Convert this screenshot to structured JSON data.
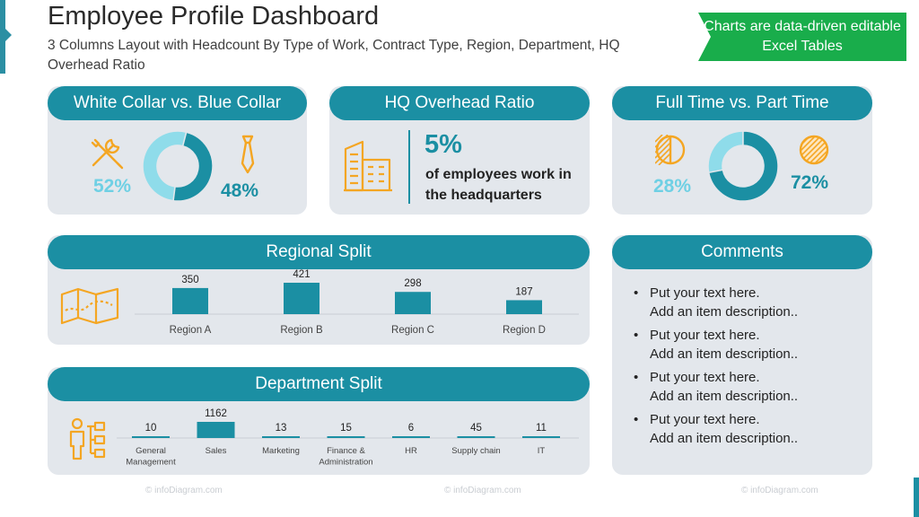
{
  "header": {
    "title": "Employee Profile Dashboard",
    "subtitle": "3 Columns Layout with Headcount By Type of Work, Contract Type, Region, Department, HQ Overhead Ratio",
    "badge": "Charts are data-driven editable Excel Tables"
  },
  "colors": {
    "accent": "#1b8fa3",
    "light_accent": "#8fdcea",
    "icon_orange": "#f4a623",
    "panel": "#e3e7ec",
    "badge_green": "#19ad4b"
  },
  "collar": {
    "heading": "White Collar vs. Blue Collar",
    "white_label": "52%",
    "blue_label": "48%",
    "icons": {
      "left": "tools-icon",
      "right": "necktie-icon"
    }
  },
  "hq": {
    "heading": "HQ Overhead Ratio",
    "value": "5%",
    "text": "of employees work in the headquarters",
    "icon": "buildings-icon"
  },
  "contract": {
    "heading": "Full Time vs. Part Time",
    "part_label": "28%",
    "full_label": "72%",
    "icons": {
      "left": "half-circle-icon",
      "right": "full-circle-icon"
    }
  },
  "regional": {
    "heading": "Regional Split",
    "icon": "map-icon"
  },
  "department": {
    "heading": "Department Split",
    "icon": "org-chart-icon"
  },
  "comments": {
    "heading": "Comments",
    "items": [
      {
        "line1": "Put your text here.",
        "line2": "Add an item description.."
      },
      {
        "line1": "Put your text here.",
        "line2": "Add an item description.."
      },
      {
        "line1": "Put your text here.",
        "line2": "Add an item description.."
      },
      {
        "line1": "Put your text here.",
        "line2": "Add an item description.."
      }
    ]
  },
  "watermark": "© infoDiagram.com",
  "chart_data": [
    {
      "type": "pie",
      "categories": [
        "White Collar",
        "Blue Collar"
      ],
      "values": [
        52,
        48
      ]
    },
    {
      "type": "pie",
      "categories": [
        "Part Time",
        "Full Time"
      ],
      "values": [
        28,
        72
      ]
    },
    {
      "type": "bar",
      "categories": [
        "Region A",
        "Region B",
        "Region C",
        "Region D"
      ],
      "values": [
        350,
        421,
        298,
        187
      ]
    },
    {
      "type": "bar",
      "categories": [
        "General Management",
        "Sales",
        "Marketing",
        "Finance & Administration",
        "HR",
        "Supply chain",
        "IT"
      ],
      "values": [
        10,
        1162,
        13,
        15,
        6,
        45,
        11
      ]
    }
  ]
}
